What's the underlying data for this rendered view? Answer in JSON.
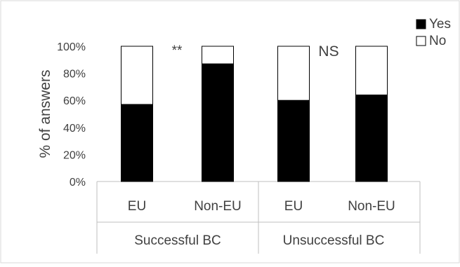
{
  "chart_data": {
    "type": "bar",
    "stacked": true,
    "groups": [
      {
        "label": "Successful BC",
        "categories": [
          "EU",
          "Non-EU"
        ],
        "annotation": "**"
      },
      {
        "label": "Unsuccessful BC",
        "categories": [
          "EU",
          "Non-EU"
        ],
        "annotation": "NS"
      }
    ],
    "series": [
      {
        "name": "Yes",
        "values": [
          57,
          87,
          60,
          64
        ],
        "color": "#000000"
      },
      {
        "name": "No",
        "values": [
          43,
          13,
          40,
          36
        ],
        "color": "#ffffff"
      }
    ],
    "ylabel": "% of answers",
    "ylim": [
      0,
      100
    ],
    "yticks": [
      "0%",
      "20%",
      "40%",
      "60%",
      "80%",
      "100%"
    ],
    "grid": false,
    "legend_position": "top-right",
    "colors": {
      "frame": "#d9d9d9",
      "axis": "#bfbfbf",
      "text": "#404040"
    }
  }
}
